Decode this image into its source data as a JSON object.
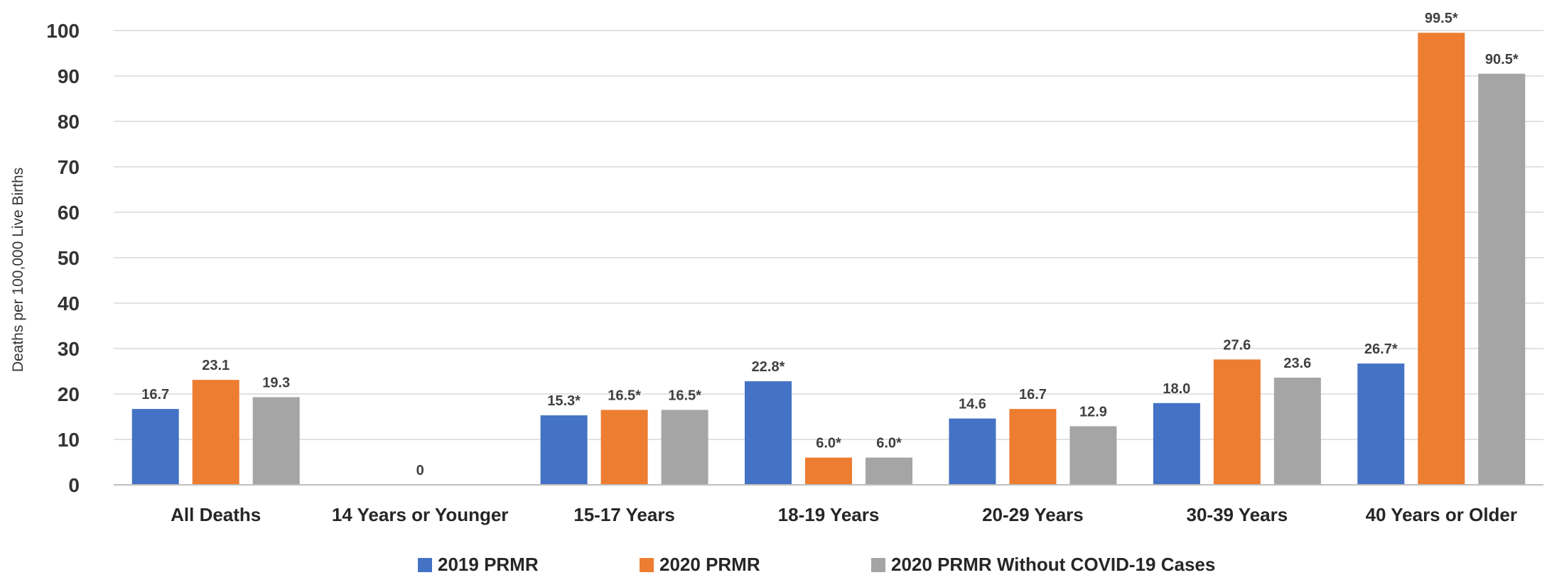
{
  "chart_data": {
    "type": "bar",
    "categories": [
      "All Deaths",
      "14 Years or Younger",
      "15-17 Years",
      "18-19 Years",
      "20-29 Years",
      "30-39 Years",
      "40 Years or Older"
    ],
    "series": [
      {
        "name": "2019 PRMR",
        "color": "#4472C4",
        "values": [
          16.7,
          null,
          15.3,
          22.8,
          14.6,
          18.0,
          26.7
        ],
        "labels": [
          "16.7",
          "",
          "15.3*",
          "22.8*",
          "14.6",
          "18.0",
          "26.7*"
        ]
      },
      {
        "name": "2020 PRMR",
        "color": "#ED7D31",
        "values": [
          23.1,
          0,
          16.5,
          6.0,
          16.7,
          27.6,
          99.5
        ],
        "labels": [
          "23.1",
          "0",
          "16.5*",
          "6.0*",
          "16.7",
          "27.6",
          "99.5*"
        ]
      },
      {
        "name": "2020 PRMR Without COVID-19 Cases",
        "color": "#A5A5A5",
        "values": [
          19.3,
          null,
          16.5,
          6.0,
          12.9,
          23.6,
          90.5
        ],
        "labels": [
          "19.3",
          "",
          "16.5*",
          "6.0*",
          "12.9",
          "23.6",
          "90.5*"
        ]
      }
    ],
    "xlabel": "",
    "ylabel": "Deaths per 100,000 Live Births",
    "ylim": [
      0,
      100
    ],
    "yticks": [
      "0",
      "10",
      "20",
      "30",
      "40",
      "50",
      "60",
      "70",
      "80",
      "90",
      "100"
    ],
    "grid": true,
    "legend_position": "bottom"
  }
}
